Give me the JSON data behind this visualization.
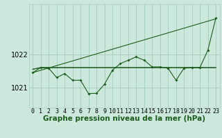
{
  "hours": [
    0,
    1,
    2,
    3,
    4,
    5,
    6,
    7,
    8,
    9,
    10,
    11,
    12,
    13,
    14,
    15,
    16,
    17,
    18,
    19,
    20,
    21,
    22,
    23
  ],
  "line_slope": [
    1021.45,
    1021.52,
    1021.59,
    1021.66,
    1021.73,
    1021.8,
    1021.87,
    1021.94,
    1022.01,
    1022.08,
    1022.15,
    1022.22,
    1022.29,
    1022.36,
    1022.43,
    1022.5,
    1022.57,
    1022.64,
    1022.71,
    1022.78,
    1022.85,
    1022.92,
    1022.99,
    1023.06
  ],
  "line_flat1": [
    1021.55,
    1021.6,
    1021.6,
    1021.6,
    1021.6,
    1021.6,
    1021.6,
    1021.6,
    1021.6,
    1021.6,
    1021.6,
    1021.6,
    1021.6,
    1021.6,
    1021.6,
    1021.6,
    1021.6,
    1021.6,
    1021.6,
    1021.6,
    1021.6,
    1021.6,
    1021.6,
    1021.6
  ],
  "line_flat2": [
    1021.55,
    1021.6,
    1021.6,
    1021.6,
    1021.6,
    1021.6,
    1021.6,
    1021.6,
    1021.6,
    1021.6,
    1021.6,
    1021.6,
    1021.6,
    1021.6,
    1021.6,
    1021.6,
    1021.6,
    1021.6,
    1021.6,
    1021.6,
    1021.6,
    1021.6,
    1021.6,
    1021.6
  ],
  "main_line": [
    1021.45,
    1021.6,
    1021.58,
    1021.3,
    1021.42,
    1021.22,
    1021.22,
    1020.82,
    1020.83,
    1021.1,
    1021.52,
    1021.72,
    1021.82,
    1021.92,
    1021.82,
    1021.62,
    1021.62,
    1021.58,
    1021.22,
    1021.58,
    1021.6,
    1021.6,
    1022.12,
    1023.08
  ],
  "bg_color": "#cce8dc",
  "grid_color": "#aacfbf",
  "line_color": "#1a5c1a",
  "xlabel": "Graphe pression niveau de la mer (hPa)",
  "ylabel_ticks": [
    1021,
    1022
  ],
  "ylim": [
    1020.4,
    1023.5
  ],
  "xlabel_fontsize": 7.5,
  "tick_fontsize": 6.5
}
